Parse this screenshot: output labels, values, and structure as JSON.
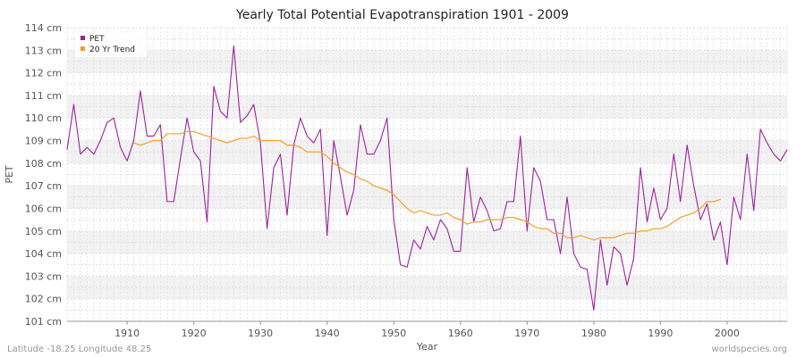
{
  "chart_data": {
    "type": "line",
    "title": "Yearly Total Potential Evapotranspiration 1901 - 2009",
    "xlabel": "Year",
    "ylabel": "PET",
    "xlim": [
      1901,
      2009
    ],
    "ylim": [
      101,
      114
    ],
    "x_ticks": [
      "1910",
      "1920",
      "1930",
      "1940",
      "1950",
      "1960",
      "1970",
      "1980",
      "1990",
      "2000"
    ],
    "y_ticks": [
      "101 cm",
      "102 cm",
      "103 cm",
      "104 cm",
      "105 cm",
      "106 cm",
      "107 cm",
      "108 cm",
      "109 cm",
      "110 cm",
      "111 cm",
      "112 cm",
      "113 cm",
      "114 cm"
    ],
    "grid": true,
    "legend_position": "top-left",
    "series": [
      {
        "name": "PET",
        "color": "#a020a0",
        "x": [
          1901,
          1902,
          1903,
          1904,
          1905,
          1906,
          1907,
          1908,
          1909,
          1910,
          1911,
          1912,
          1913,
          1914,
          1915,
          1916,
          1917,
          1918,
          1919,
          1920,
          1921,
          1922,
          1923,
          1924,
          1925,
          1926,
          1927,
          1928,
          1929,
          1930,
          1931,
          1932,
          1933,
          1934,
          1935,
          1936,
          1937,
          1938,
          1939,
          1940,
          1941,
          1942,
          1943,
          1944,
          1945,
          1946,
          1947,
          1948,
          1949,
          1950,
          1951,
          1952,
          1953,
          1954,
          1955,
          1956,
          1957,
          1958,
          1959,
          1960,
          1961,
          1962,
          1963,
          1964,
          1965,
          1966,
          1967,
          1968,
          1969,
          1970,
          1971,
          1972,
          1973,
          1974,
          1975,
          1976,
          1977,
          1978,
          1979,
          1980,
          1981,
          1982,
          1983,
          1984,
          1985,
          1986,
          1987,
          1988,
          1989,
          1990,
          1991,
          1992,
          1993,
          1994,
          1995,
          1996,
          1997,
          1998,
          1999,
          2000,
          2001,
          2002,
          2003,
          2004,
          2005,
          2006,
          2007,
          2008,
          2009
        ],
        "values": [
          108.6,
          110.6,
          108.4,
          108.7,
          108.4,
          109.0,
          109.8,
          110.0,
          108.7,
          108.1,
          109.0,
          111.2,
          109.2,
          109.2,
          109.7,
          106.3,
          106.3,
          108.2,
          110.0,
          108.5,
          108.1,
          105.4,
          111.4,
          110.3,
          110.0,
          113.2,
          109.8,
          110.1,
          110.6,
          108.9,
          105.1,
          107.8,
          108.4,
          105.7,
          108.8,
          110.0,
          109.2,
          108.9,
          109.5,
          104.8,
          109.0,
          107.4,
          105.7,
          106.8,
          109.7,
          108.4,
          108.4,
          109.0,
          110.0,
          105.5,
          103.5,
          103.4,
          104.6,
          104.2,
          105.2,
          104.6,
          105.5,
          105.1,
          104.1,
          104.1,
          107.8,
          105.4,
          106.5,
          105.9,
          105.0,
          105.1,
          106.3,
          106.3,
          109.2,
          105.0,
          107.8,
          107.2,
          105.5,
          105.5,
          104.0,
          106.5,
          104.0,
          103.4,
          103.3,
          101.5,
          104.6,
          102.6,
          104.3,
          104.0,
          102.6,
          103.8,
          107.8,
          105.4,
          106.9,
          105.5,
          106.0,
          108.4,
          106.3,
          108.8,
          107.0,
          105.5,
          106.2,
          104.6,
          105.4,
          103.5,
          106.5,
          105.5,
          108.4,
          105.9,
          109.5,
          108.9,
          108.4,
          108.1,
          108.6
        ]
      },
      {
        "name": "20 Yr Trend",
        "color": "#f5a020",
        "x": [
          1911,
          1912,
          1913,
          1914,
          1915,
          1916,
          1917,
          1918,
          1919,
          1920,
          1921,
          1922,
          1923,
          1924,
          1925,
          1926,
          1927,
          1928,
          1929,
          1930,
          1931,
          1932,
          1933,
          1934,
          1935,
          1936,
          1937,
          1938,
          1939,
          1940,
          1941,
          1942,
          1943,
          1944,
          1945,
          1946,
          1947,
          1948,
          1949,
          1950,
          1951,
          1952,
          1953,
          1954,
          1955,
          1956,
          1957,
          1958,
          1959,
          1960,
          1961,
          1962,
          1963,
          1964,
          1965,
          1966,
          1967,
          1968,
          1969,
          1970,
          1971,
          1972,
          1973,
          1974,
          1975,
          1976,
          1977,
          1978,
          1979,
          1980,
          1981,
          1982,
          1983,
          1984,
          1985,
          1986,
          1987,
          1988,
          1989,
          1990,
          1991,
          1992,
          1993,
          1994,
          1995,
          1996,
          1997,
          1998,
          1999
        ],
        "values": [
          108.9,
          108.8,
          108.9,
          109.0,
          109.0,
          109.3,
          109.3,
          109.3,
          109.4,
          109.4,
          109.3,
          109.2,
          109.1,
          109.0,
          108.9,
          109.0,
          109.1,
          109.1,
          109.2,
          109.0,
          109.0,
          109.0,
          109.0,
          108.8,
          108.8,
          108.7,
          108.5,
          108.5,
          108.5,
          108.3,
          108.0,
          107.8,
          107.6,
          107.5,
          107.3,
          107.2,
          107.0,
          106.9,
          106.8,
          106.6,
          106.3,
          106.0,
          105.8,
          105.9,
          105.8,
          105.7,
          105.7,
          105.8,
          105.6,
          105.5,
          105.3,
          105.4,
          105.4,
          105.5,
          105.5,
          105.5,
          105.6,
          105.6,
          105.5,
          105.4,
          105.2,
          105.1,
          105.1,
          104.9,
          104.9,
          104.7,
          104.7,
          104.8,
          104.7,
          104.6,
          104.7,
          104.7,
          104.7,
          104.8,
          104.9,
          104.9,
          105.0,
          105.0,
          105.1,
          105.1,
          105.2,
          105.4,
          105.6,
          105.7,
          105.8,
          106.0,
          106.3,
          106.3,
          106.4
        ]
      }
    ]
  },
  "footer": {
    "location": "Latitude -18.25 Longitude 48.25",
    "source": "worldspecies.org"
  }
}
